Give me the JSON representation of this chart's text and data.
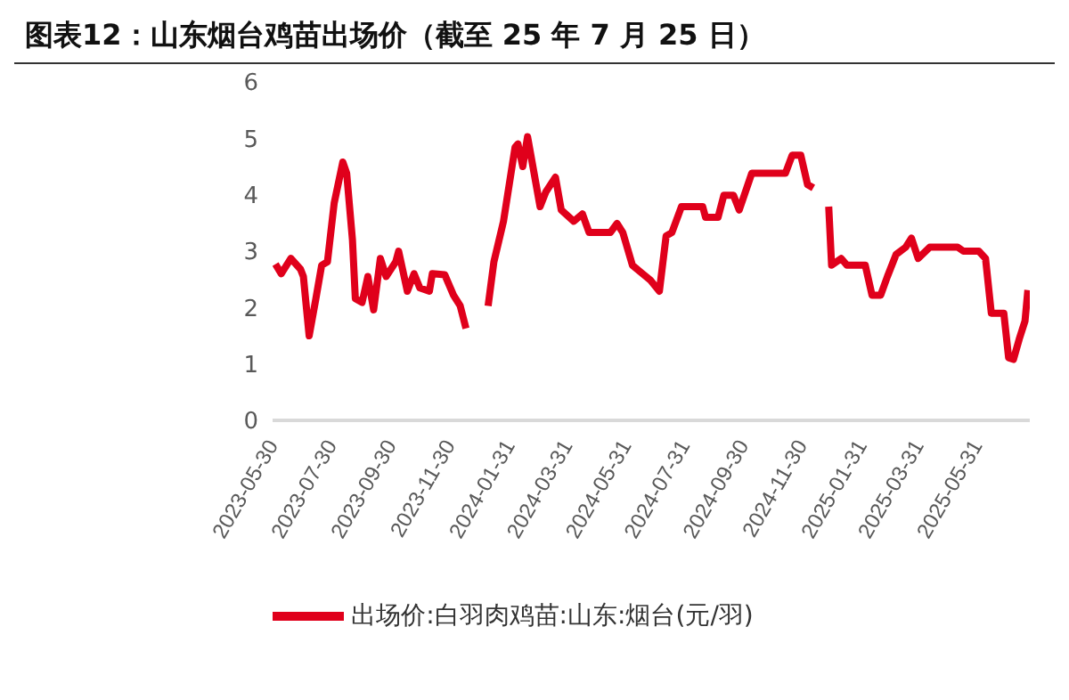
{
  "chart_data": {
    "type": "line",
    "title": "图表12：山东烟台鸡苗出场价（截至 25 年 7 月 25 日）",
    "x": [
      "2023-06-02",
      "2023-06-08",
      "2023-06-18",
      "2023-06-28",
      "2023-07-01",
      "2023-07-07",
      "2023-07-14",
      "2023-07-20",
      "2023-07-26",
      "2023-08-02",
      "2023-08-11",
      "2023-08-15",
      "2023-08-21",
      "2023-08-24",
      "2023-08-31",
      "2023-09-06",
      "2023-09-12",
      "2023-09-19",
      "2023-09-25",
      "2023-10-05",
      "2023-10-08",
      "2023-10-17",
      "2023-10-24",
      "2023-10-30",
      "2023-11-09",
      "2023-11-12",
      "2023-11-25",
      "2023-12-04",
      "2023-12-11",
      "2023-12-17",
      "2023-12-29",
      "2024-01-09",
      "2024-01-15",
      "2024-01-25",
      "2024-02-06",
      "2024-02-09",
      "2024-02-14",
      "2024-02-19",
      "2024-03-03",
      "2024-03-09",
      "2024-03-19",
      "2024-03-25",
      "2024-04-07",
      "2024-04-16",
      "2024-04-23",
      "2024-05-15",
      "2024-05-22",
      "2024-05-28",
      "2024-06-07",
      "2024-06-16",
      "2024-06-26",
      "2024-07-05",
      "2024-07-12",
      "2024-07-18",
      "2024-07-28",
      "2024-08-19",
      "2024-08-22",
      "2024-09-04",
      "2024-09-10",
      "2024-09-20",
      "2024-09-26",
      "2024-10-09",
      "2024-11-13",
      "2024-11-20",
      "2024-11-29",
      "2024-12-06",
      "2024-12-12",
      "2024-12-20",
      "2024-12-28",
      "2024-12-31",
      "2025-01-10",
      "2025-01-16",
      "2025-02-04",
      "2025-02-11",
      "2025-02-20",
      "2025-02-27",
      "2025-03-08",
      "2025-03-18",
      "2025-03-24",
      "2025-03-31",
      "2025-04-12",
      "2025-05-11",
      "2025-05-17",
      "2025-06-02",
      "2025-06-09",
      "2025-06-15",
      "2025-06-28",
      "2025-07-03",
      "2025-07-08",
      "2025-07-14",
      "2025-07-20",
      "2025-07-23"
    ],
    "series": [
      {
        "name": "出场价:白羽肉鸡苗:山东:烟台(元/羽)",
        "color": "#e0001b",
        "values": [
          2.77,
          2.6,
          2.87,
          2.68,
          2.55,
          1.5,
          2.16,
          2.75,
          2.81,
          3.85,
          4.58,
          4.38,
          3.2,
          2.16,
          2.09,
          2.55,
          1.96,
          2.87,
          2.55,
          2.81,
          3.0,
          2.29,
          2.6,
          2.35,
          2.29,
          2.6,
          2.58,
          2.22,
          2.03,
          1.63,
          null,
          2.03,
          2.81,
          3.53,
          4.84,
          4.9,
          4.5,
          5.03,
          3.79,
          4.05,
          4.31,
          3.73,
          3.53,
          3.66,
          3.33,
          3.33,
          3.49,
          3.33,
          2.75,
          2.62,
          2.48,
          2.29,
          3.27,
          3.33,
          3.79,
          3.79,
          3.6,
          3.6,
          3.99,
          3.99,
          3.73,
          4.38,
          4.38,
          4.7,
          4.7,
          4.18,
          4.12,
          null,
          3.79,
          2.75,
          2.87,
          2.75,
          2.75,
          2.22,
          2.22,
          2.55,
          2.94,
          3.07,
          3.23,
          2.87,
          3.07,
          3.07,
          3.0,
          3.0,
          2.87,
          1.9,
          1.9,
          1.11,
          1.08,
          1.44,
          1.76,
          2.31
        ]
      }
    ],
    "xlim": [
      "2023-05-30",
      "2025-07-25"
    ],
    "xticks": [
      "2023-05-30",
      "2023-07-30",
      "2023-09-30",
      "2023-11-30",
      "2024-01-31",
      "2024-03-31",
      "2024-05-31",
      "2024-07-31",
      "2024-09-30",
      "2024-11-30",
      "2025-01-31",
      "2025-03-31",
      "2025-05-31"
    ],
    "ylim": [
      0,
      6
    ],
    "yticks": [
      0,
      1,
      2,
      3,
      4,
      5,
      6
    ],
    "grid": false,
    "legend": "bottom"
  }
}
